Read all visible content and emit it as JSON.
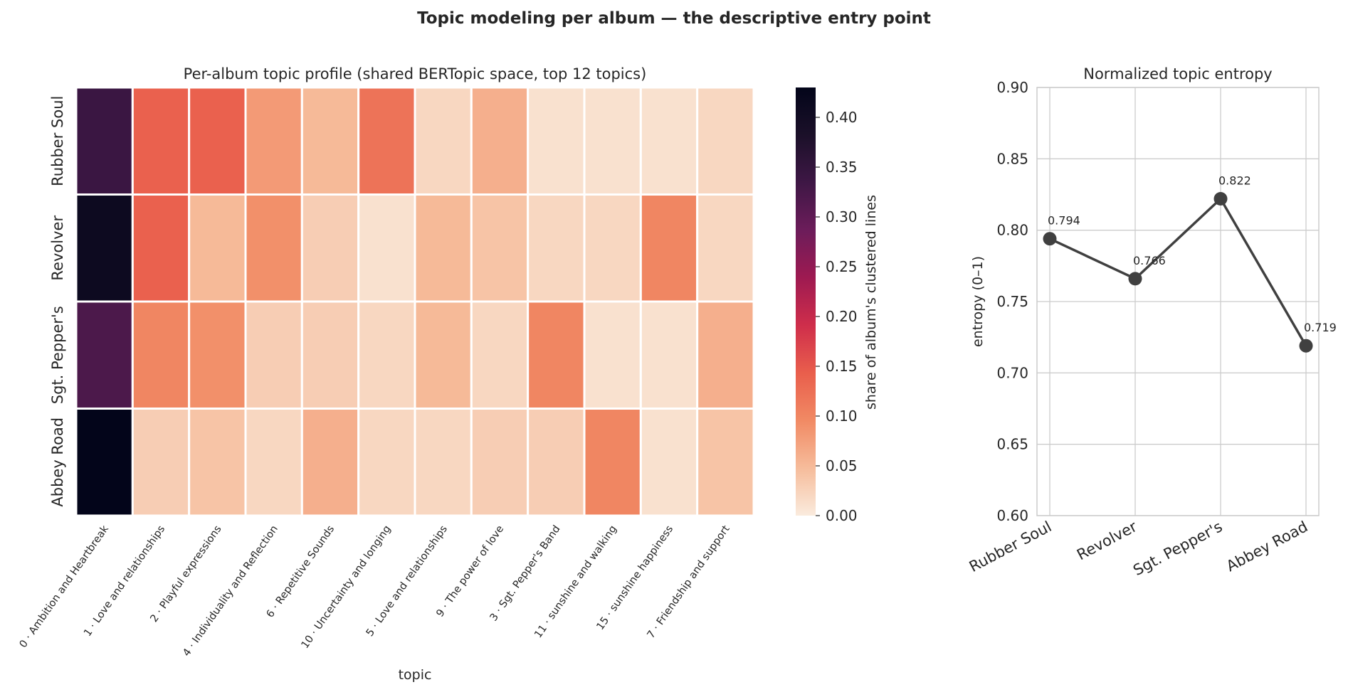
{
  "suptitle": "Topic modeling per album — the descriptive entry point",
  "chart_data": [
    {
      "type": "heatmap",
      "title": "Per-album topic profile (shared BERTopic space, top 12 topics)",
      "xlabel": "topic",
      "ylabel": "",
      "rows": [
        "Rubber Soul",
        "Revolver",
        "Sgt. Pepper's",
        "Abbey Road"
      ],
      "columns": [
        "0 · Ambition and Heartbreak",
        "1 · Love and relationships",
        "2 · Playful expressions",
        "4 · Individuality and Reflection",
        "6 · Repetitive Sounds",
        "10 · Uncertainty and longing",
        "5 · Love and relationships",
        "9 · The power of love",
        "3 · Sgt. Pepper's Band",
        "11 · sunshine and walking",
        "15 · sunshine happiness",
        "7 · Friendship and support"
      ],
      "values": [
        [
          0.34,
          0.14,
          0.14,
          0.08,
          0.05,
          0.12,
          0.02,
          0.06,
          0.01,
          0.01,
          0.01,
          0.02
        ],
        [
          0.41,
          0.14,
          0.05,
          0.09,
          0.03,
          0.01,
          0.05,
          0.04,
          0.02,
          0.02,
          0.1,
          0.02
        ],
        [
          0.32,
          0.1,
          0.09,
          0.03,
          0.03,
          0.02,
          0.05,
          0.02,
          0.1,
          0.01,
          0.01,
          0.06
        ],
        [
          0.43,
          0.03,
          0.04,
          0.02,
          0.06,
          0.02,
          0.02,
          0.03,
          0.03,
          0.1,
          0.01,
          0.04
        ]
      ],
      "colorbar": {
        "label": "share of album's clustered lines",
        "range": [
          0,
          0.43
        ],
        "ticks": [
          "0.00",
          "0.05",
          "0.10",
          "0.15",
          "0.20",
          "0.25",
          "0.30",
          "0.35",
          "0.40"
        ],
        "colormap": "rocket_r",
        "stops": [
          "#faebdd",
          "#f6bc9b",
          "#f18a64",
          "#e95e4c",
          "#cf2e4b",
          "#9e1a51",
          "#6c1c5a",
          "#3e1745",
          "#1b1029",
          "#03051a"
        ]
      }
    },
    {
      "type": "line",
      "title": "Normalized topic entropy",
      "xlabel": "",
      "ylabel": "entropy (0–1)",
      "categories": [
        "Rubber Soul",
        "Revolver",
        "Sgt. Pepper's",
        "Abbey Road"
      ],
      "values": [
        0.794,
        0.766,
        0.822,
        0.719
      ],
      "data_labels": [
        "0.794",
        "0.766",
        "0.822",
        "0.719"
      ],
      "ylim": [
        0.6,
        0.9
      ],
      "yticks": [
        "0.60",
        "0.65",
        "0.70",
        "0.75",
        "0.80",
        "0.85",
        "0.90"
      ],
      "grid": true,
      "line_color": "#404040"
    }
  ]
}
